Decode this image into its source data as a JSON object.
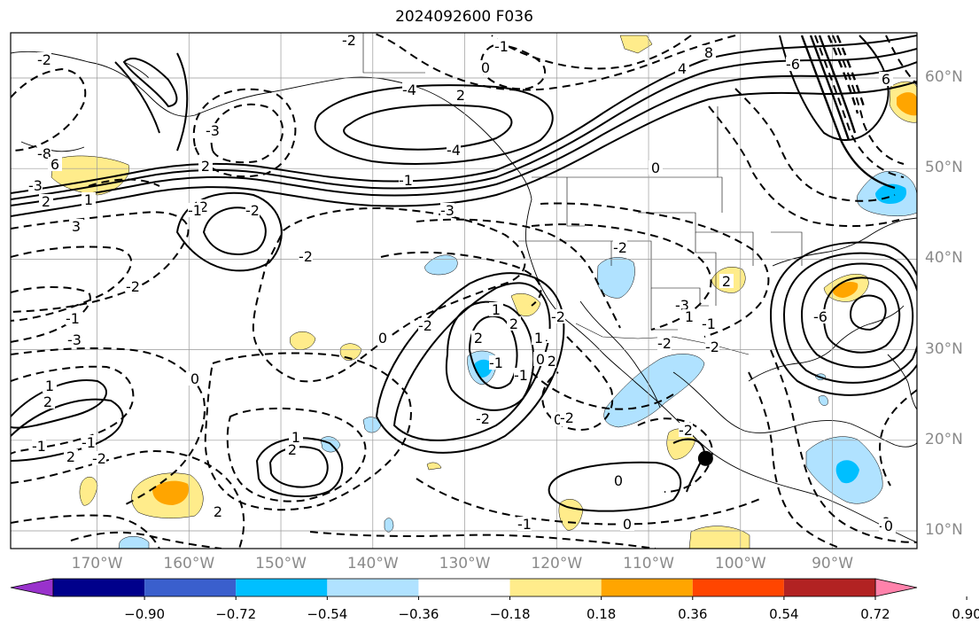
{
  "title": "2024092600 F036",
  "lat_labels": [
    {
      "text": "60°N",
      "lat": 60
    },
    {
      "text": "50°N",
      "lat": 50
    },
    {
      "text": "40°N",
      "lat": 40
    },
    {
      "text": "30°N",
      "lat": 30
    },
    {
      "text": "20°N",
      "lat": 20
    },
    {
      "text": "10°N",
      "lat": 10
    }
  ],
  "lon_labels": [
    {
      "text": "170°W",
      "lon": -170
    },
    {
      "text": "160°W",
      "lon": -160
    },
    {
      "text": "150°W",
      "lon": -150
    },
    {
      "text": "140°W",
      "lon": -140
    },
    {
      "text": "130°W",
      "lon": -130
    },
    {
      "text": "120°W",
      "lon": -120
    },
    {
      "text": "110°W",
      "lon": -110
    },
    {
      "text": "100°W",
      "lon": -100
    },
    {
      "text": "90°W",
      "lon": -90
    }
  ],
  "colorbar": {
    "colors": [
      "#9932cc",
      "#00008b",
      "#3a5fcd",
      "#00bfff",
      "#b0e2ff",
      "#ffffff",
      "#ffec8b",
      "#ffa500",
      "#ff4500",
      "#b22222",
      "#ff82ab"
    ],
    "ticks": [
      "−0.90",
      "−0.72",
      "−0.54",
      "−0.36",
      "−0.18",
      "0.18",
      "0.36",
      "0.54",
      "0.72",
      "0.90"
    ]
  },
  "contour_labels": [
    "-2",
    "-1",
    "0",
    "-2",
    "2",
    "-4",
    "8",
    "-6",
    "6",
    "4",
    "-8",
    "-4",
    "-3",
    "6",
    "2",
    "-3",
    "-1",
    "1",
    "2",
    "-3",
    "-2",
    "-1",
    "3",
    "2",
    "0",
    "-2",
    "-1",
    "-3",
    "-2",
    "-3",
    "-2",
    "-2",
    "-2",
    "2",
    "1",
    "2",
    "-1",
    "-2",
    "0",
    "-2",
    "1",
    "-2",
    "-1",
    "-2",
    "-2",
    "0",
    "2",
    "-6",
    "1",
    "2",
    "-1",
    "0",
    "-1",
    "2",
    "-2",
    "2",
    "1",
    "2",
    "0",
    "0",
    "-1",
    "0",
    "1",
    "-2",
    "-2",
    "-1",
    "1",
    "0",
    "-3",
    "0"
  ],
  "marker": {
    "label": "storm-position",
    "lon": -103.8,
    "lat": 18.0
  }
}
